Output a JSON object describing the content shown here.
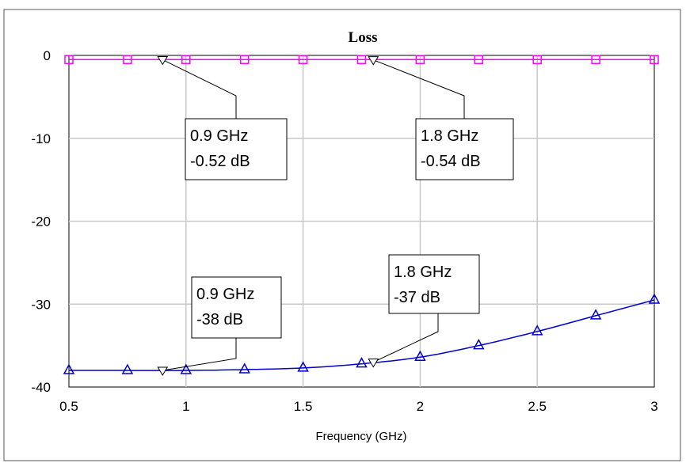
{
  "chart_data": {
    "type": "line",
    "title": "Loss",
    "xlabel": "Frequency (GHz)",
    "ylabel": "",
    "xlim": [
      0.5,
      3
    ],
    "ylim": [
      -40,
      0
    ],
    "x_ticks": [
      "0.5",
      "1",
      "1.5",
      "2",
      "2.5",
      "3"
    ],
    "y_ticks": [
      "0",
      "-10",
      "-20",
      "-30",
      "-40"
    ],
    "grid": true,
    "series": [
      {
        "color": "#ff00ff",
        "marker": "square",
        "x": [
          0.5,
          0.75,
          1.0,
          1.25,
          1.5,
          1.75,
          2.0,
          2.25,
          2.5,
          2.75,
          3.0
        ],
        "values": [
          -0.5,
          -0.5,
          -0.5,
          -0.5,
          -0.5,
          -0.5,
          -0.5,
          -0.5,
          -0.5,
          -0.5,
          -0.5
        ]
      },
      {
        "color": "#0000cc",
        "marker": "triangle",
        "x": [
          0.5,
          0.75,
          1.0,
          1.25,
          1.5,
          1.75,
          2.0,
          2.25,
          2.5,
          2.75,
          3.0
        ],
        "values": [
          -38.0,
          -38.0,
          -38.0,
          -37.9,
          -37.7,
          -37.2,
          -36.4,
          -35.0,
          -33.3,
          -31.4,
          -29.5
        ]
      }
    ],
    "annotations": [
      {
        "x": 0.9,
        "y": -0.52,
        "line1": "0.9 GHz",
        "line2": "-0.52 dB"
      },
      {
        "x": 1.8,
        "y": -0.54,
        "line1": "1.8 GHz",
        "line2": "-0.54 dB"
      },
      {
        "x": 0.9,
        "y": -38,
        "line1": "0.9 GHz",
        "line2": "-38 dB"
      },
      {
        "x": 1.8,
        "y": -37,
        "line1": "1.8 GHz",
        "line2": "-37 dB"
      }
    ]
  }
}
